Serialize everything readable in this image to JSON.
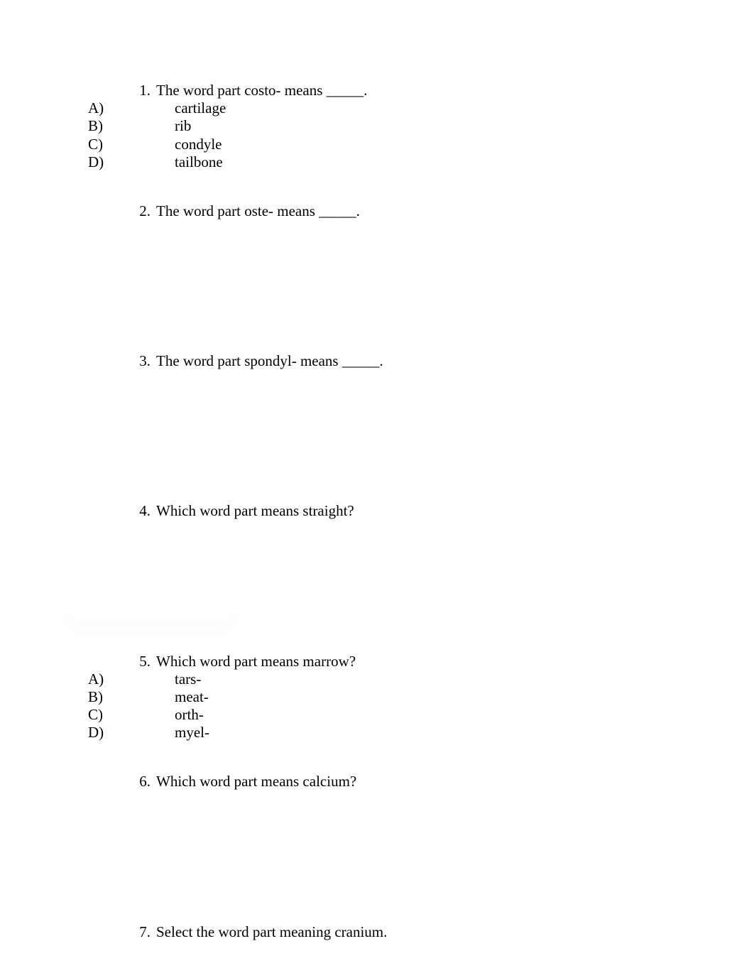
{
  "colors": {
    "background": "#ffffff",
    "text": "#000000"
  },
  "typography": {
    "font_family": "Times New Roman",
    "font_size_pt": 16
  },
  "questions": [
    {
      "number": "1.",
      "text": "The word part costo-  means _____.",
      "options": [
        {
          "letter": "A)",
          "text": "cartilage"
        },
        {
          "letter": "B)",
          "text": "rib"
        },
        {
          "letter": "C)",
          "text": "condyle"
        },
        {
          "letter": "D)",
          "text": "tailbone"
        }
      ]
    },
    {
      "number": "2.",
      "text": "The word part oste- means _____.",
      "options": []
    },
    {
      "number": "3.",
      "text": "The word part spondyl- means _____.",
      "options": []
    },
    {
      "number": "4.",
      "text": "Which word part means straight?",
      "options": []
    },
    {
      "number": "5.",
      "text": "Which word part means marrow?",
      "options": [
        {
          "letter": "A)",
          "text": "tars-"
        },
        {
          "letter": "B)",
          "text": "meat-"
        },
        {
          "letter": "C)",
          "text": "orth-"
        },
        {
          "letter": "D)",
          "text": "myel-"
        }
      ]
    },
    {
      "number": "6.",
      "text": "Which word part means calcium?",
      "options": []
    },
    {
      "number": "7.",
      "text": "Select the word part meaning cranium.",
      "options": []
    }
  ]
}
